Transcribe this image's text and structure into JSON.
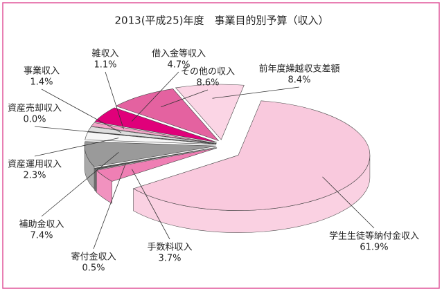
{
  "chart_data": {
    "type": "pie3d",
    "title": "2013(平成25)年度　事業目的別予算（収入）",
    "categories": [
      "学生生徒等納付金収入",
      "手数料収入",
      "寄付金収入",
      "補助金収入",
      "資産運用収入",
      "資産売却収入",
      "事業収入",
      "雑収入",
      "借入金等収入",
      "その他の収入",
      "前年度繰越収支差額"
    ],
    "values": [
      61.9,
      3.7,
      0.5,
      7.4,
      2.3,
      0.0,
      1.4,
      1.1,
      4.7,
      8.6,
      8.4
    ],
    "value_labels": [
      "61.9%",
      "3.7%",
      "0.5%",
      "7.4%",
      "2.3%",
      "0.0%",
      "1.4%",
      "1.1%",
      "4.7%",
      "8.6%",
      "8.4%"
    ],
    "colors": [
      "#f9c9dd",
      "#ef7fb4",
      "#555555",
      "#9a9a9a",
      "#f6f6f6",
      "#333333",
      "#dddddd",
      "#f3a6c8",
      "#e0007a",
      "#e462a0",
      "#fbd5e5"
    ]
  }
}
